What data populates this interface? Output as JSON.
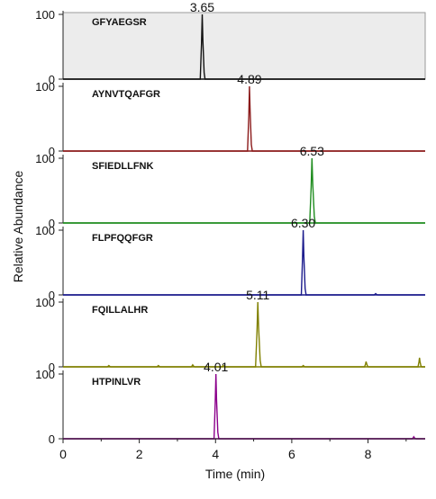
{
  "chart_data": {
    "type": "line",
    "title": "",
    "xlabel": "Time (min)",
    "ylabel": "Relative Abundance",
    "xlim": [
      0,
      9.5
    ],
    "ylim": [
      0,
      100
    ],
    "x_ticks": [
      "0",
      "2",
      "4",
      "6",
      "8"
    ],
    "y_ticks": [
      "0",
      "100"
    ],
    "grid": false,
    "panels": [
      {
        "name": "GFYAEGSR",
        "color": "#111111",
        "highlighted": true,
        "apex_label": "3.65",
        "apex_rt": 3.65,
        "peak_height": 100,
        "peak_width_min": 0.05,
        "minor_peaks": []
      },
      {
        "name": "AYNVTQAFGR",
        "color": "#8B1A1A",
        "highlighted": false,
        "apex_label": "4.89",
        "apex_rt": 4.89,
        "peak_height": 100,
        "peak_width_min": 0.05,
        "minor_peaks": []
      },
      {
        "name": "SFIEDLLFNK",
        "color": "#1E8C1E",
        "highlighted": false,
        "apex_label": "6.53",
        "apex_rt": 6.53,
        "peak_height": 100,
        "peak_width_min": 0.06,
        "minor_peaks": []
      },
      {
        "name": "FLPFQQFGR",
        "color": "#1A1A8C",
        "highlighted": false,
        "apex_label": "6.30",
        "apex_rt": 6.3,
        "peak_height": 100,
        "peak_width_min": 0.05,
        "minor_peaks": [
          {
            "x": 8.2,
            "y": 2
          }
        ]
      },
      {
        "name": "FQILLALHR",
        "color": "#808000",
        "highlighted": false,
        "apex_label": "5.11",
        "apex_rt": 5.11,
        "peak_height": 100,
        "peak_width_min": 0.06,
        "minor_peaks": [
          {
            "x": 1.2,
            "y": 2
          },
          {
            "x": 2.5,
            "y": 2
          },
          {
            "x": 3.4,
            "y": 3
          },
          {
            "x": 4.2,
            "y": 2
          },
          {
            "x": 6.3,
            "y": 2
          },
          {
            "x": 7.95,
            "y": 8
          },
          {
            "x": 9.35,
            "y": 14
          }
        ]
      },
      {
        "name": "HTPINLVR",
        "color": "#8B008B",
        "highlighted": false,
        "apex_label": "4.01",
        "apex_rt": 4.01,
        "peak_height": 100,
        "peak_width_min": 0.05,
        "minor_peaks": [
          {
            "x": 9.2,
            "y": 3
          }
        ]
      }
    ]
  }
}
